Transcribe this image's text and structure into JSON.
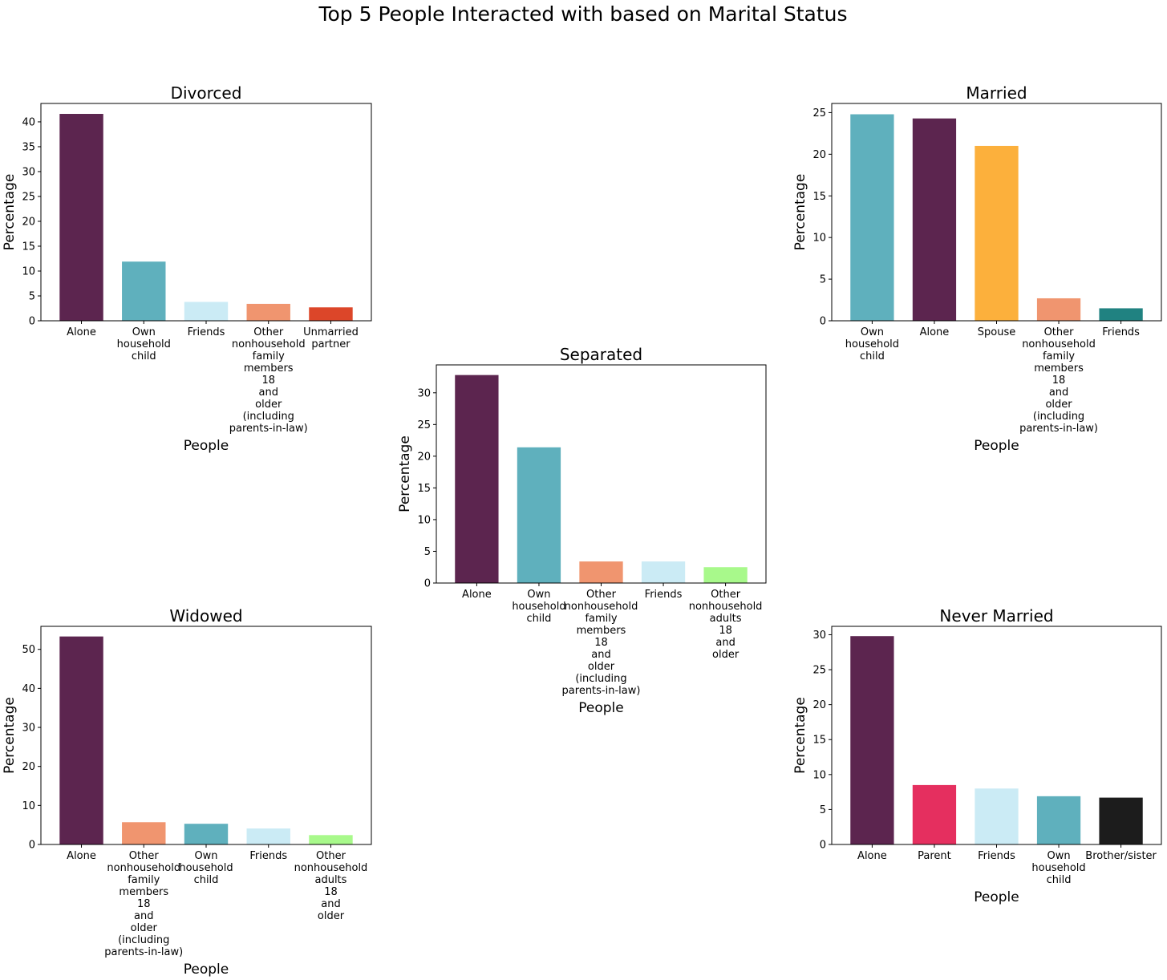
{
  "suptitle": "Top 5 People Interacted with based on Marital Status",
  "chart_data": [
    {
      "type": "bar",
      "title": "Divorced",
      "xlabel": "People",
      "ylabel": "Percentage",
      "ylim": [
        0,
        43.7
      ],
      "yticks": [
        0,
        5,
        10,
        15,
        20,
        25,
        30,
        35,
        40
      ],
      "categories": [
        "Alone",
        "Own household child",
        "Friends",
        "Other nonhousehold family members 18 and older (including parents-in-law)",
        "Unmarried partner"
      ],
      "category_lines": [
        [
          "Alone"
        ],
        [
          "Own",
          "household",
          "child"
        ],
        [
          "Friends"
        ],
        [
          "Other",
          "nonhousehold",
          "family",
          "members",
          "18",
          "and",
          "older",
          "(including",
          "parents-in-law)"
        ],
        [
          "Unmarried",
          "partner"
        ]
      ],
      "values": [
        41.6,
        11.9,
        3.8,
        3.4,
        2.7
      ],
      "colors": [
        "#5c254f",
        "#5fb0bd",
        "#cbebf5",
        "#f0956f",
        "#dc4629"
      ]
    },
    {
      "type": "bar",
      "title": "Married",
      "xlabel": "People",
      "ylabel": "Percentage",
      "ylim": [
        0,
        26.1
      ],
      "yticks": [
        0,
        5,
        10,
        15,
        20,
        25
      ],
      "categories": [
        "Own household child",
        "Alone",
        "Spouse",
        "Other nonhousehold family members 18 and older (including parents-in-law)",
        "Friends"
      ],
      "category_lines": [
        [
          "Own",
          "household",
          "child"
        ],
        [
          "Alone"
        ],
        [
          "Spouse"
        ],
        [
          "Other",
          "nonhousehold",
          "family",
          "members",
          "18",
          "and",
          "older",
          "(including",
          "parents-in-law)"
        ],
        [
          "Friends"
        ]
      ],
      "values": [
        24.8,
        24.3,
        21.0,
        2.7,
        1.5
      ],
      "colors": [
        "#5fb0bd",
        "#5c254f",
        "#fcb03c",
        "#f0956f",
        "#208281"
      ]
    },
    {
      "type": "bar",
      "title": "Separated",
      "xlabel": "People",
      "ylabel": "Percentage",
      "ylim": [
        0,
        34.4
      ],
      "yticks": [
        0,
        5,
        10,
        15,
        20,
        25,
        30
      ],
      "categories": [
        "Alone",
        "Own household child",
        "Other nonhousehold family members 18 and older (including parents-in-law)",
        "Friends",
        "Other nonhousehold adults 18 and older"
      ],
      "category_lines": [
        [
          "Alone"
        ],
        [
          "Own",
          "household",
          "child"
        ],
        [
          "Other",
          "nonhousehold",
          "family",
          "members",
          "18",
          "and",
          "older",
          "(including",
          "parents-in-law)"
        ],
        [
          "Friends"
        ],
        [
          "Other",
          "nonhousehold",
          "adults",
          "18",
          "and",
          "older"
        ]
      ],
      "values": [
        32.8,
        21.4,
        3.4,
        3.4,
        2.5
      ],
      "colors": [
        "#5c254f",
        "#5fb0bd",
        "#f0956f",
        "#cbebf5",
        "#a8f98b"
      ]
    },
    {
      "type": "bar",
      "title": "Widowed",
      "xlabel": "People",
      "ylabel": "Percentage",
      "ylim": [
        0,
        55.9
      ],
      "yticks": [
        0,
        10,
        20,
        30,
        40,
        50
      ],
      "categories": [
        "Alone",
        "Other nonhousehold family members 18 and older (including parents-in-law)",
        "Own household child",
        "Friends",
        "Other nonhousehold adults 18 and older"
      ],
      "category_lines": [
        [
          "Alone"
        ],
        [
          "Other",
          "nonhousehold",
          "family",
          "members",
          "18",
          "and",
          "older",
          "(including",
          "parents-in-law)"
        ],
        [
          "Own",
          "household",
          "child"
        ],
        [
          "Friends"
        ],
        [
          "Other",
          "nonhousehold",
          "adults",
          "18",
          "and",
          "older"
        ]
      ],
      "values": [
        53.3,
        5.7,
        5.3,
        4.1,
        2.4
      ],
      "colors": [
        "#5c254f",
        "#f0956f",
        "#5fb0bd",
        "#cbebf5",
        "#a8f98b"
      ]
    },
    {
      "type": "bar",
      "title": "Never Married",
      "xlabel": "People",
      "ylabel": "Percentage",
      "ylim": [
        0,
        31.2
      ],
      "yticks": [
        0,
        5,
        10,
        15,
        20,
        25,
        30
      ],
      "categories": [
        "Alone",
        "Parent",
        "Friends",
        "Own household child",
        "Brother/sister"
      ],
      "category_lines": [
        [
          "Alone"
        ],
        [
          "Parent"
        ],
        [
          "Friends"
        ],
        [
          "Own",
          "household",
          "child"
        ],
        [
          "Brother/sister"
        ]
      ],
      "values": [
        29.8,
        8.5,
        8.0,
        6.9,
        6.7
      ],
      "colors": [
        "#5c254f",
        "#e52f5f",
        "#cbebf5",
        "#5fb0bd",
        "#1c1c1c"
      ]
    }
  ]
}
